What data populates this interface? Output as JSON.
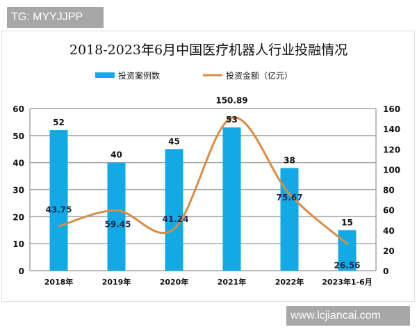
{
  "watermarks": {
    "top": "TG: MYYJJPP",
    "bottom": "www.lcjiancai.com"
  },
  "colors": {
    "bar": "#12a9e6",
    "line": "#d98c45",
    "grid": "#a6a6a6",
    "text": "#111111"
  },
  "chart_data": {
    "type": "bar+line",
    "title": "2018-2023年6月中国医疗机器人行业投融情况",
    "categories": [
      "2018年",
      "2019年",
      "2020年",
      "2021年",
      "2022年",
      "2023年1-6月"
    ],
    "series": [
      {
        "name": "投资案例数",
        "type": "bar",
        "axis": "left",
        "values": [
          52,
          40,
          45,
          53,
          38,
          15
        ],
        "labels": [
          "52",
          "40",
          "45",
          "53",
          "38",
          "15"
        ]
      },
      {
        "name": "投资金额（亿元）",
        "type": "line",
        "axis": "right",
        "smooth": true,
        "values": [
          43.75,
          59.45,
          41.24,
          150.89,
          75.67,
          26.56
        ],
        "labels": [
          "43.75",
          "59.45",
          "41.24",
          "150.89",
          "75.67",
          "26.56"
        ]
      }
    ],
    "left_axis": {
      "min": 0,
      "max": 60,
      "step": 10,
      "ticks": [
        "0",
        "10",
        "20",
        "30",
        "40",
        "50",
        "60"
      ]
    },
    "right_axis": {
      "min": 0,
      "max": 160,
      "step": 20,
      "ticks": [
        "0",
        "20",
        "40",
        "60",
        "80",
        "100",
        "120",
        "140",
        "160"
      ]
    },
    "xlabel": "",
    "ylabel": "",
    "legend_position": "top",
    "grid": true
  }
}
